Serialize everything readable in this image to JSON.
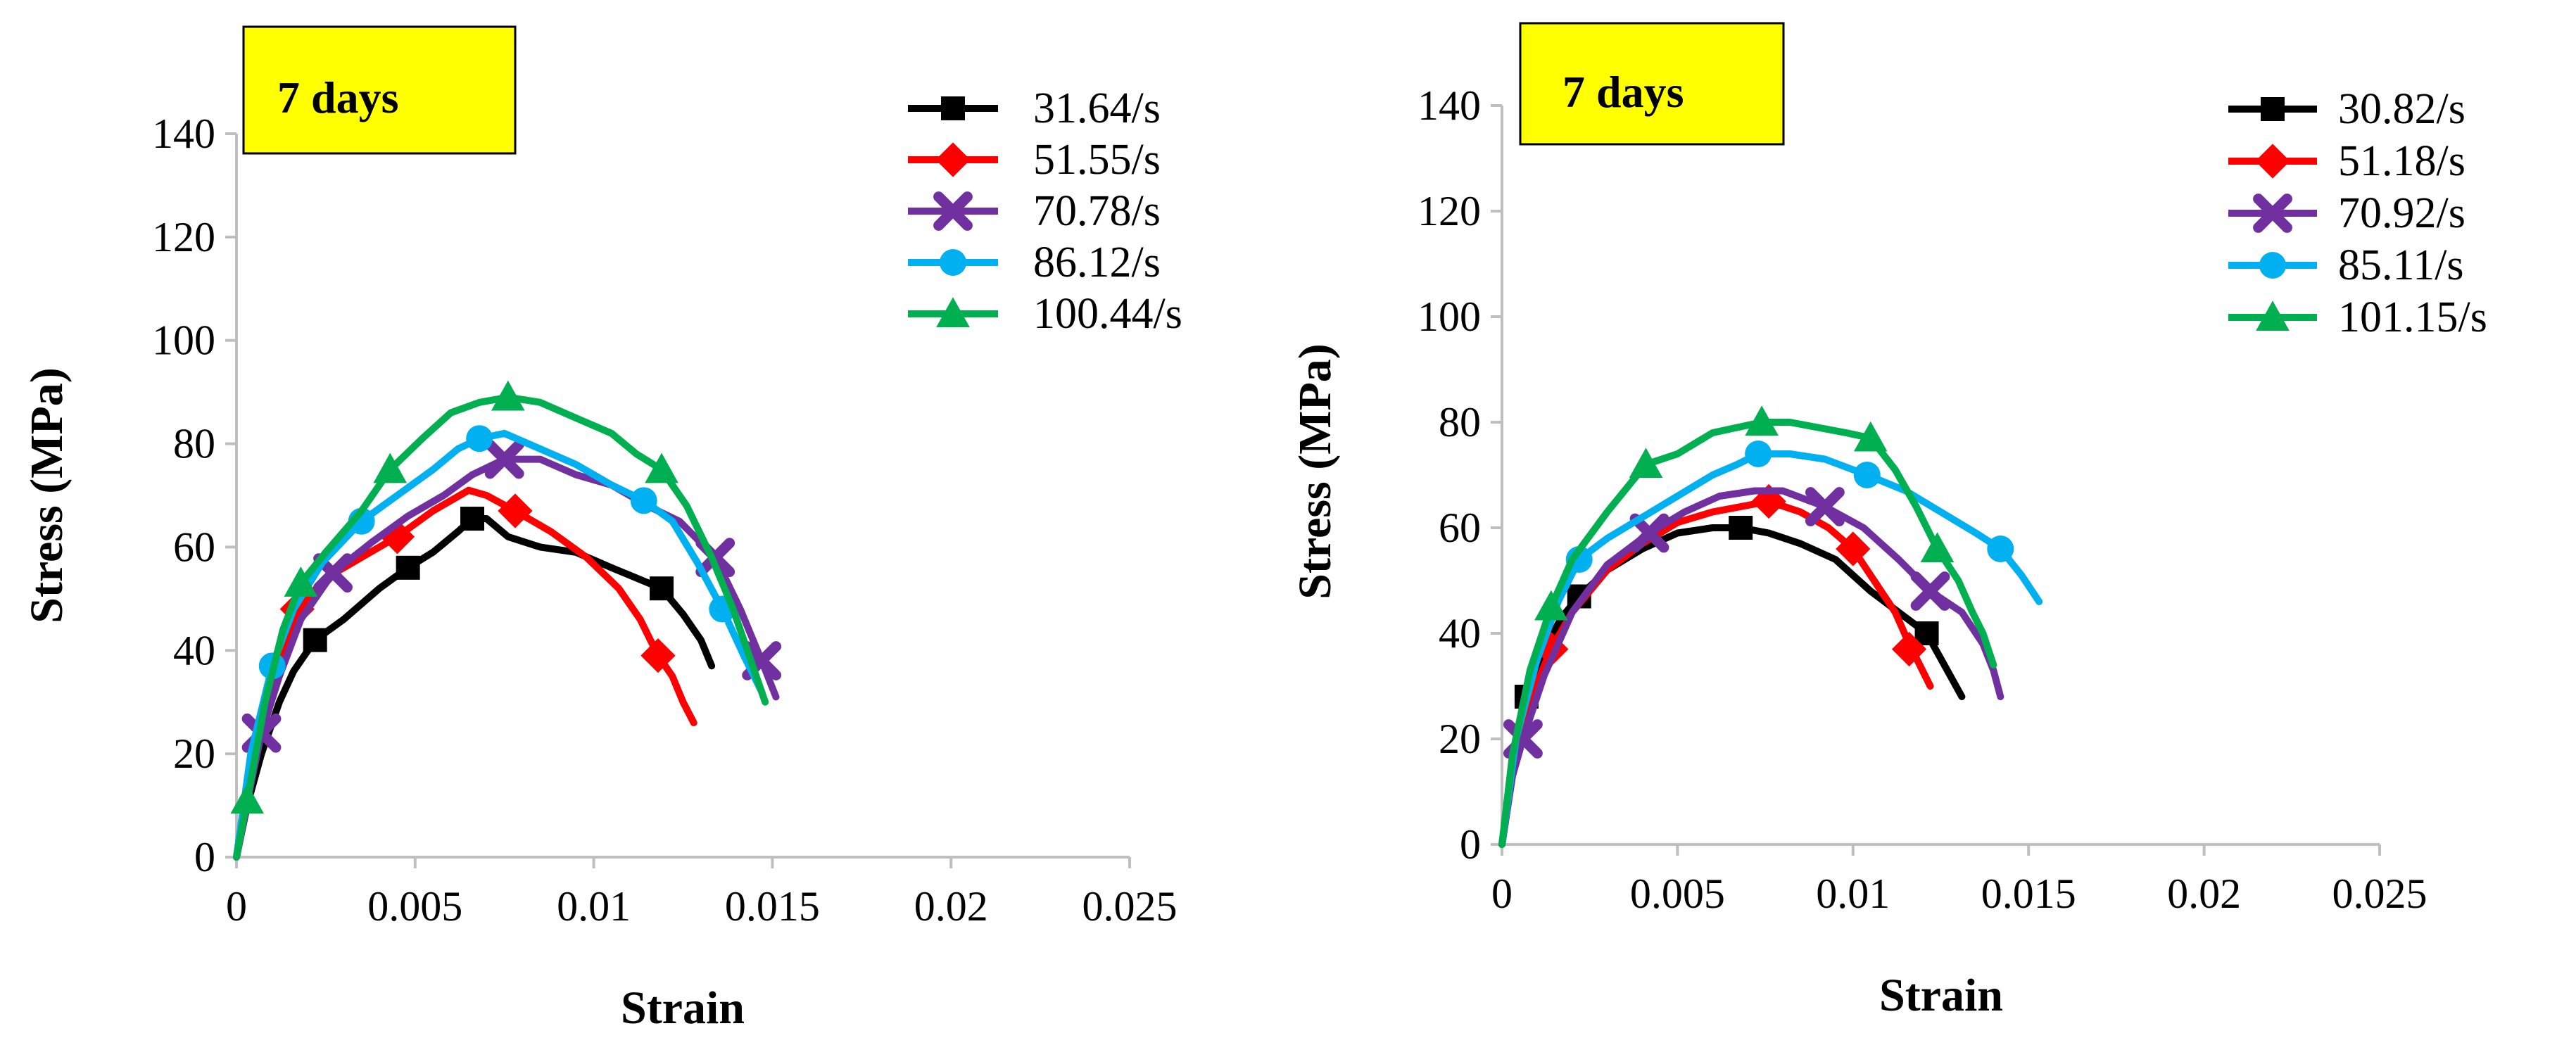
{
  "chart_data": [
    {
      "type": "line",
      "label": "7 days",
      "xlabel": "Strain",
      "ylabel": "Stress (MPa)",
      "xlim": [
        0,
        0.025
      ],
      "ylim": [
        0,
        140
      ],
      "xticks": [
        "0",
        "0.005",
        "0.01",
        "0.015",
        "0.02",
        "0.025"
      ],
      "yticks": [
        "0",
        "20",
        "40",
        "60",
        "80",
        "100",
        "120",
        "140"
      ],
      "legend_position": "top-right",
      "series": [
        {
          "name": "31.64/s",
          "color": "#000000",
          "marker": "square",
          "x": [
            0,
            0.0003,
            0.0007,
            0.0012,
            0.0016,
            0.0022,
            0.003,
            0.004,
            0.0048,
            0.0055,
            0.0062,
            0.0066,
            0.007,
            0.0076,
            0.0085,
            0.0095,
            0.0105,
            0.0112,
            0.0119,
            0.0125,
            0.013,
            0.0133
          ],
          "y": [
            0,
            10,
            20,
            30,
            36,
            42,
            46,
            52,
            56,
            59,
            63,
            65.5,
            65.5,
            62,
            60,
            59,
            56,
            54,
            52,
            47,
            42,
            37
          ],
          "markers_x": [
            0.0022,
            0.0048,
            0.0066,
            0.0119
          ],
          "markers_y": [
            42,
            56,
            65.5,
            52
          ]
        },
        {
          "name": "51.55/s",
          "color": "#ff0000",
          "marker": "diamond",
          "x": [
            0,
            0.0004,
            0.0009,
            0.0013,
            0.0017,
            0.0025,
            0.0035,
            0.0045,
            0.0055,
            0.0065,
            0.007,
            0.0078,
            0.0088,
            0.0098,
            0.0107,
            0.0113,
            0.0118,
            0.0122,
            0.0125,
            0.0128
          ],
          "y": [
            0,
            18,
            30,
            40,
            48,
            54,
            58,
            62,
            67,
            71,
            70,
            67,
            63,
            58,
            52,
            46,
            39,
            35,
            30,
            26
          ],
          "markers_x": [
            0.0017,
            0.0045,
            0.0078,
            0.0118
          ],
          "markers_y": [
            48,
            62,
            67,
            39
          ]
        },
        {
          "name": "70.78/s",
          "color": "#7030a0",
          "marker": "x",
          "x": [
            0,
            0.0004,
            0.0007,
            0.0012,
            0.0018,
            0.0027,
            0.0038,
            0.0048,
            0.0058,
            0.0066,
            0.0075,
            0.0085,
            0.0095,
            0.0105,
            0.0115,
            0.0124,
            0.0134,
            0.0141,
            0.0147,
            0.0151
          ],
          "y": [
            0,
            14,
            24,
            35,
            46,
            55,
            61,
            66,
            70,
            74,
            77,
            77,
            74,
            72,
            68,
            65,
            58,
            48,
            38,
            31
          ],
          "markers_x": [
            0.0007,
            0.0027,
            0.0075,
            0.0134,
            0.0147
          ],
          "markers_y": [
            24,
            55,
            77,
            58,
            38
          ]
        },
        {
          "name": "86.12/s",
          "color": "#00b0f0",
          "marker": "circle",
          "x": [
            0,
            0.0004,
            0.001,
            0.0016,
            0.0024,
            0.0035,
            0.0045,
            0.0055,
            0.0062,
            0.0068,
            0.0075,
            0.0085,
            0.0095,
            0.0105,
            0.0114,
            0.0122,
            0.0129,
            0.0136,
            0.0142,
            0.0147
          ],
          "y": [
            0,
            20,
            37,
            48,
            57,
            65,
            70,
            75,
            79,
            81,
            82,
            79,
            76,
            72,
            69,
            65,
            57,
            48,
            39,
            32
          ],
          "markers_x": [
            0.001,
            0.0035,
            0.0068,
            0.0114,
            0.0136
          ],
          "markers_y": [
            37,
            65,
            81,
            69,
            48
          ]
        },
        {
          "name": "100.44/s",
          "color": "#00b050",
          "marker": "triangle",
          "x": [
            0,
            0.0003,
            0.0008,
            0.0013,
            0.0018,
            0.0025,
            0.0035,
            0.0043,
            0.0052,
            0.006,
            0.0068,
            0.0076,
            0.0085,
            0.0095,
            0.0105,
            0.0112,
            0.0119,
            0.0126,
            0.0133,
            0.0139,
            0.0144,
            0.0148
          ],
          "y": [
            0,
            11,
            30,
            44,
            53,
            59,
            67,
            75,
            81,
            86,
            88,
            89,
            88,
            85,
            82,
            78,
            75,
            68,
            58,
            48,
            38,
            30
          ],
          "markers_x": [
            0.0003,
            0.0018,
            0.0043,
            0.0076,
            0.0119
          ],
          "markers_y": [
            11,
            53,
            75,
            89,
            75
          ]
        }
      ]
    },
    {
      "type": "line",
      "label": "7 days",
      "xlabel": "Strain",
      "ylabel": "Stress (MPa)",
      "xlim": [
        0,
        0.025
      ],
      "ylim": [
        0,
        140
      ],
      "xticks": [
        "0",
        "0.005",
        "0.01",
        "0.015",
        "0.02",
        "0.025"
      ],
      "yticks": [
        "0",
        "20",
        "40",
        "60",
        "80",
        "100",
        "120",
        "140"
      ],
      "legend_position": "top-right",
      "series": [
        {
          "name": "30.82/s",
          "color": "#000000",
          "marker": "square",
          "x": [
            0,
            0.0004,
            0.0007,
            0.0012,
            0.0017,
            0.0022,
            0.003,
            0.004,
            0.005,
            0.006,
            0.0068,
            0.0076,
            0.0085,
            0.0095,
            0.0105,
            0.0113,
            0.0121,
            0.0126,
            0.0131
          ],
          "y": [
            0,
            18,
            28,
            37,
            43,
            47,
            52,
            56,
            59,
            60,
            60,
            59,
            57,
            54,
            48,
            44,
            40,
            34,
            28
          ],
          "markers_x": [
            0.0007,
            0.0022,
            0.0068,
            0.0121
          ],
          "markers_y": [
            28,
            47,
            60,
            40
          ]
        },
        {
          "name": "51.18/s",
          "color": "#ff0000",
          "marker": "diamond",
          "x": [
            0,
            0.0004,
            0.0009,
            0.0014,
            0.002,
            0.003,
            0.004,
            0.005,
            0.006,
            0.0068,
            0.0076,
            0.0085,
            0.0093,
            0.01,
            0.0106,
            0.0112,
            0.0116,
            0.0119,
            0.0122
          ],
          "y": [
            0,
            18,
            29,
            37,
            44,
            52,
            57,
            61,
            63,
            64,
            65,
            63,
            60,
            56,
            50,
            44,
            38,
            34,
            30
          ],
          "markers_x": [
            0.0014,
            0.0076,
            0.01,
            0.0116
          ],
          "markers_y": [
            37,
            65,
            56,
            37
          ]
        },
        {
          "name": "70.92/s",
          "color": "#7030a0",
          "marker": "x",
          "x": [
            0,
            0.0003,
            0.0006,
            0.0012,
            0.002,
            0.003,
            0.0042,
            0.0052,
            0.0062,
            0.0072,
            0.008,
            0.0092,
            0.0103,
            0.0113,
            0.0122,
            0.0131,
            0.0137,
            0.014,
            0.0142
          ],
          "y": [
            0,
            13,
            20,
            32,
            44,
            53,
            59,
            63,
            66,
            67,
            67,
            64,
            60,
            54,
            48,
            44,
            38,
            33,
            28
          ],
          "markers_x": [
            0.0006,
            0.0042,
            0.0092,
            0.0122
          ],
          "markers_y": [
            20,
            59,
            64,
            48
          ]
        },
        {
          "name": "85.11/s",
          "color": "#00b0f0",
          "marker": "circle",
          "x": [
            0,
            0.0004,
            0.001,
            0.0016,
            0.0022,
            0.003,
            0.004,
            0.005,
            0.006,
            0.0067,
            0.0073,
            0.0082,
            0.0092,
            0.0104,
            0.0115,
            0.0125,
            0.0135,
            0.0142,
            0.0148,
            0.0153
          ],
          "y": [
            0,
            20,
            35,
            46,
            54,
            58,
            62,
            66,
            70,
            72,
            74,
            74,
            73,
            70,
            67,
            63,
            59,
            56,
            51,
            46
          ],
          "markers_x": [
            0.0022,
            0.0073,
            0.0104,
            0.0142
          ],
          "markers_y": [
            54,
            74,
            70,
            56
          ]
        },
        {
          "name": "101.15/s",
          "color": "#00b050",
          "marker": "triangle",
          "x": [
            0,
            0.0003,
            0.0008,
            0.0014,
            0.002,
            0.003,
            0.0041,
            0.005,
            0.006,
            0.0067,
            0.0074,
            0.0082,
            0.009,
            0.0098,
            0.0105,
            0.0112,
            0.0118,
            0.0124,
            0.013,
            0.0134,
            0.0137,
            0.014
          ],
          "y": [
            0,
            17,
            33,
            45,
            54,
            63,
            72,
            74,
            78,
            79,
            80,
            80,
            79,
            78,
            77,
            71,
            64,
            56,
            50,
            44,
            40,
            34
          ],
          "markers_x": [
            0.0014,
            0.0041,
            0.0074,
            0.0105,
            0.0124
          ],
          "markers_y": [
            45,
            72,
            80,
            77,
            56
          ]
        }
      ]
    }
  ]
}
